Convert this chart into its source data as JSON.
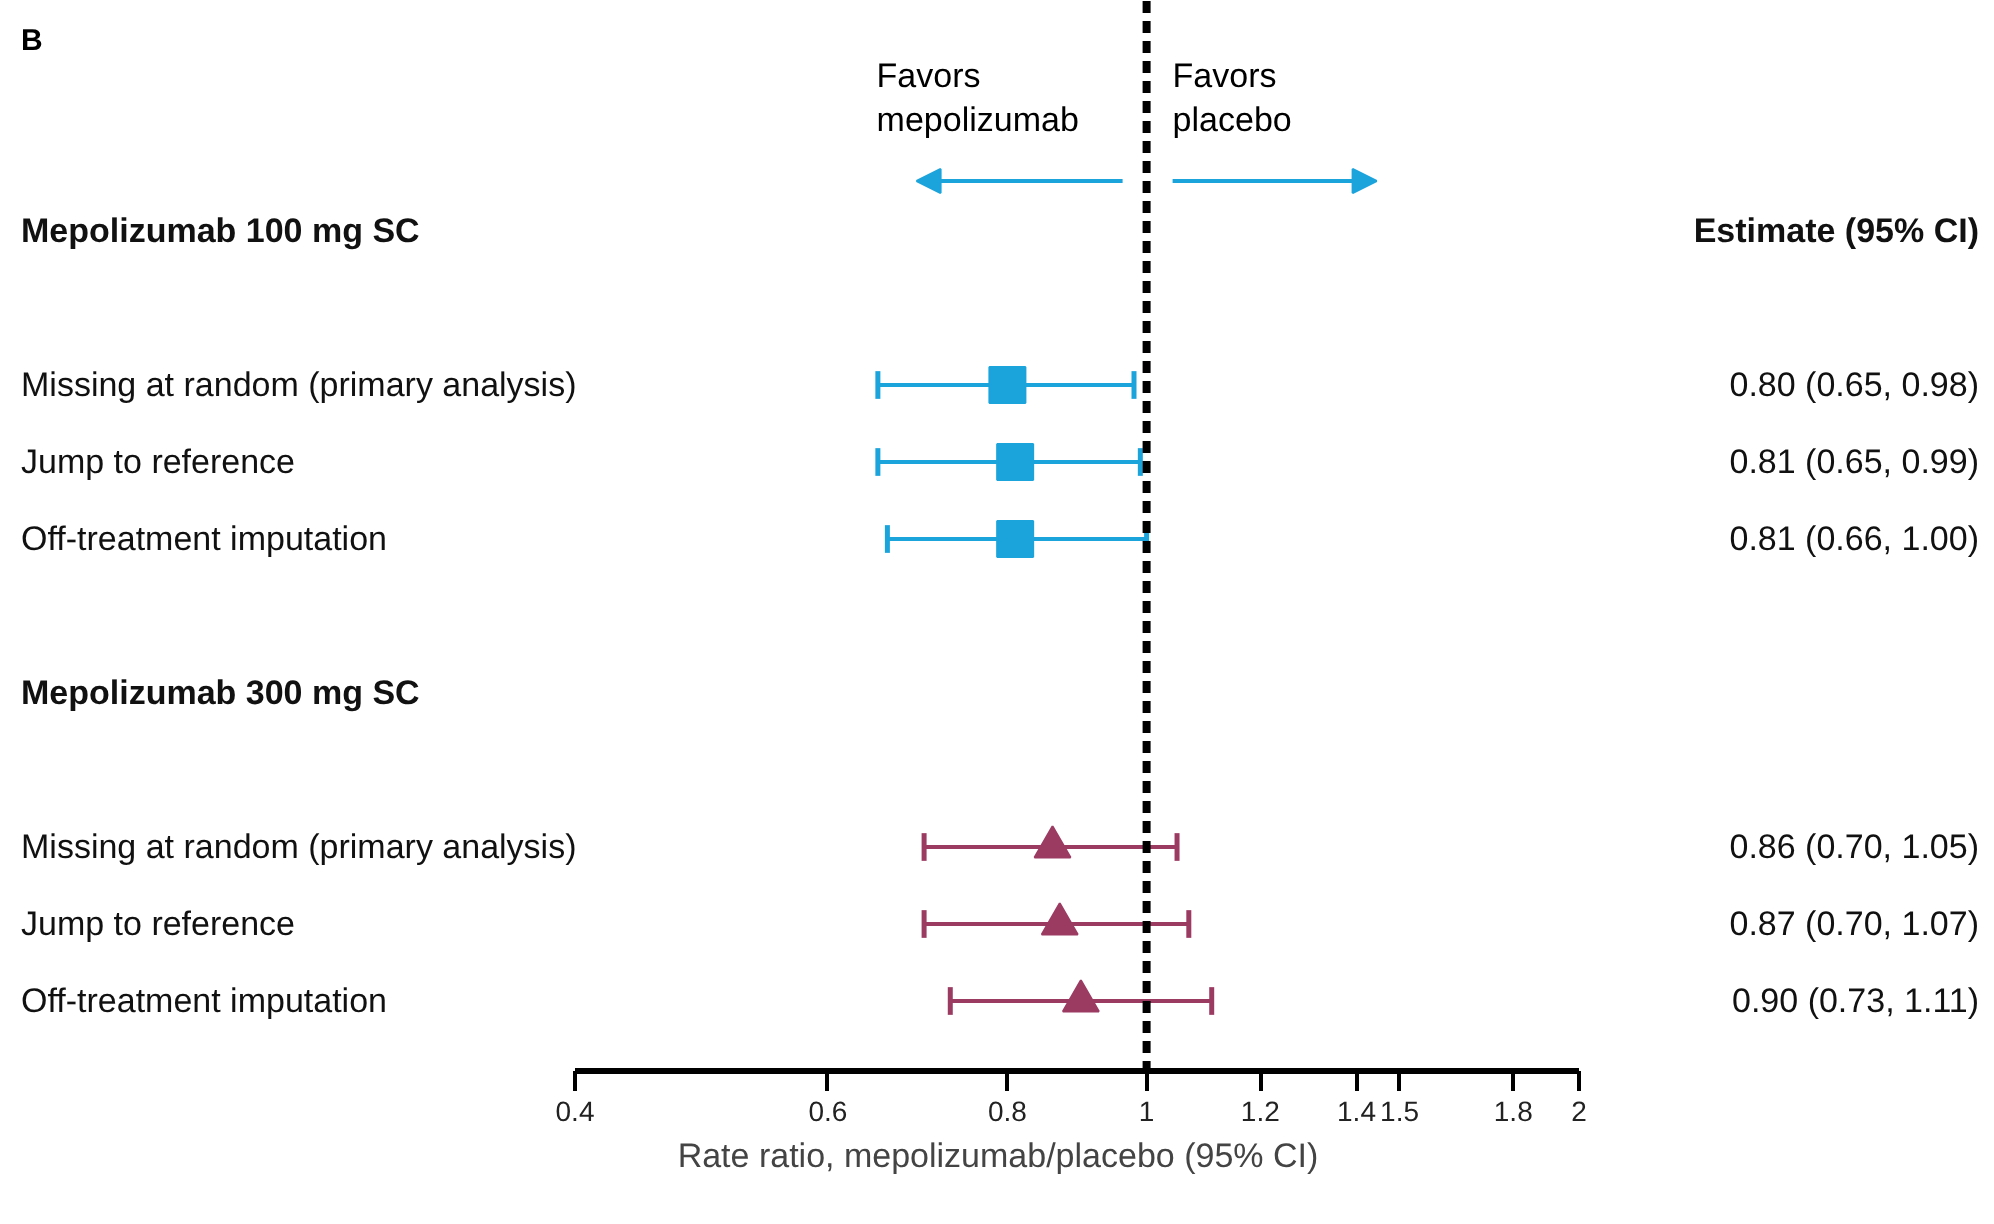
{
  "chart_data": {
    "type": "scatter",
    "title": "B",
    "orientation": "horizontal",
    "xlabel": "Rate ratio, mepolizumab/placebo (95% CI)",
    "categories": [
      "Mepolizumab 100 mg SC",
      null,
      "Missing at random (primary analysis)",
      "Jump to reference",
      "Off-treatment imputation",
      null,
      "Mepolizumab 300 mg SC",
      null,
      "Missing at random (primary analysis)",
      "Jump to reference",
      "Off-treatment imputation"
    ],
    "y2_categories": [
      "Estimate (95% CI)",
      null,
      "0.80 (0.65, 0.98)",
      "0.81 (0.65, 0.99)",
      "0.81 (0.66, 1.00)",
      null,
      null,
      null,
      "0.86 (0.70, 1.05)",
      "0.87 (0.70, 1.07)",
      "0.90 (0.73, 1.11)"
    ],
    "series": [
      {
        "color": "#1ba3dc",
        "marker": "square",
        "values": [
          null,
          null,
          0.8,
          0.81,
          0.81,
          null,
          null,
          null,
          null,
          null,
          null
        ],
        "errors": [
          null,
          null,
          [
            0.65,
            0.98
          ],
          [
            0.65,
            0.99
          ],
          [
            0.66,
            1.0
          ],
          null,
          null,
          null,
          null,
          null,
          null
        ]
      },
      {
        "color": "#9c3b62",
        "marker": "triangle",
        "values": [
          null,
          null,
          null,
          null,
          null,
          null,
          null,
          null,
          0.86,
          0.87,
          0.9
        ],
        "errors": [
          null,
          null,
          null,
          null,
          null,
          null,
          null,
          null,
          [
            0.7,
            1.05
          ],
          [
            0.7,
            1.07
          ],
          [
            0.73,
            1.11
          ]
        ]
      }
    ],
    "log": "x",
    "xlim": [
      0.4,
      2
    ],
    "xticks": [
      0.4,
      0.6,
      0.8,
      1,
      1.2,
      1.4,
      1.5,
      1.8,
      2
    ],
    "ref_lines": [
      {
        "axis": "x",
        "value": 1,
        "line_style": "dashed",
        "color": "#000000"
      }
    ],
    "annotations": [
      "Favors\nmepolizumab",
      "Favors\nplacebo"
    ],
    "grid": false
  }
}
